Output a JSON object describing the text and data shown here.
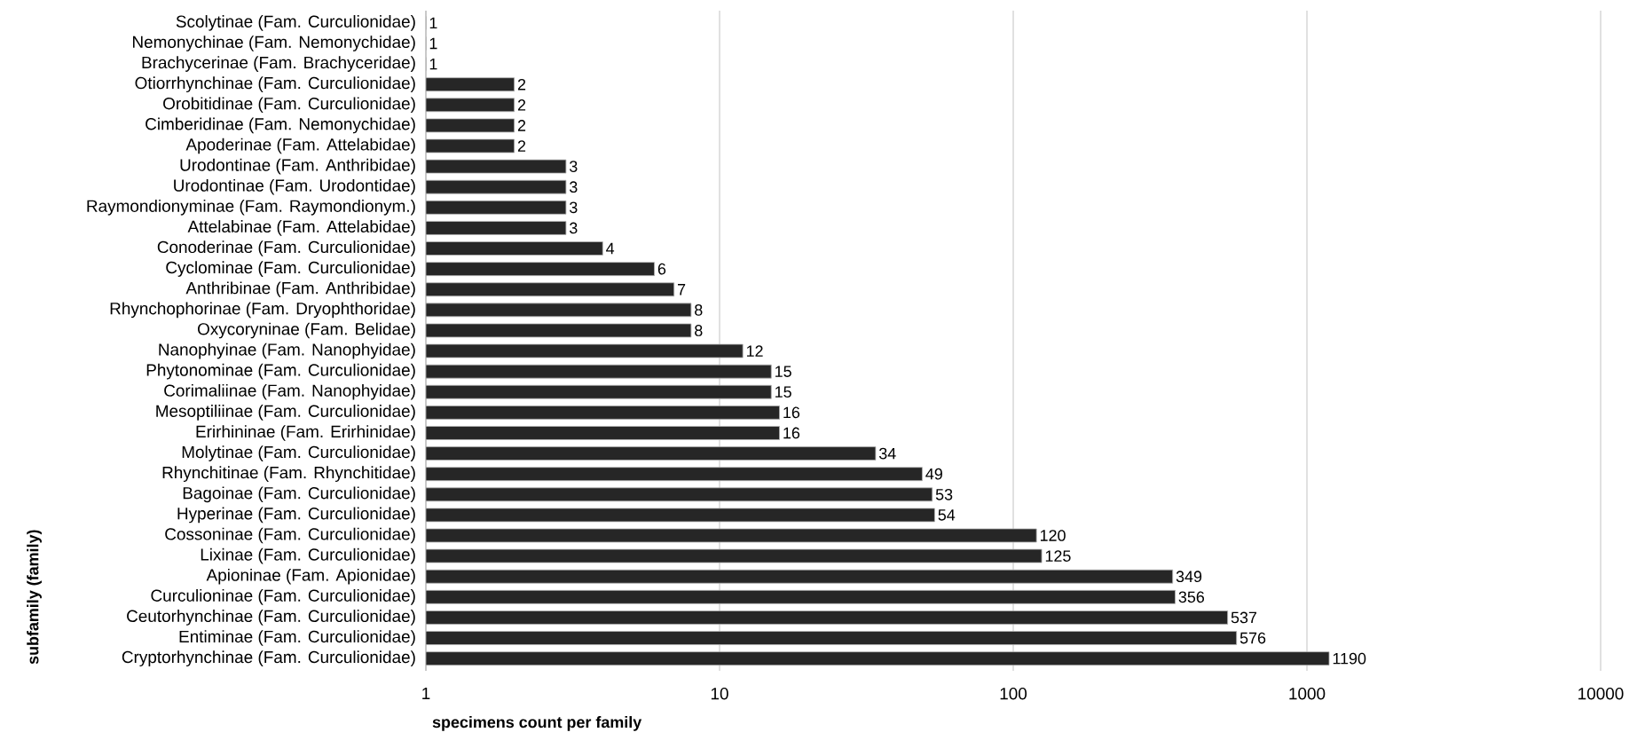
{
  "chart_data": {
    "type": "bar",
    "orientation": "horizontal",
    "xlabel": "specimens count per family",
    "ylabel": "subfamily (family)",
    "categories": [
      "Scolytinae (Fam. Curculionidae)",
      "Nemonychinae (Fam. Nemonychidae)",
      "Brachycerinae (Fam. Brachyceridae)",
      "Otiorrhynchinae (Fam. Curculionidae)",
      "Orobitidinae (Fam. Curculionidae)",
      "Cimberidinae (Fam. Nemonychidae)",
      "Apoderinae (Fam. Attelabidae)",
      "Urodontinae (Fam. Anthribidae)",
      "Urodontinae (Fam. Urodontidae)",
      "Raymondionyminae (Fam. Raymondionym.)",
      "Attelabinae (Fam. Attelabidae)",
      "Conoderinae (Fam. Curculionidae)",
      "Cyclominae (Fam. Curculionidae)",
      "Anthribinae (Fam. Anthribidae)",
      "Rhynchophorinae (Fam. Dryophthoridae)",
      "Oxycoryninae (Fam. Belidae)",
      "Nanophyinae (Fam. Nanophyidae)",
      "Phytonominae (Fam. Curculionidae)",
      "Corimaliinae (Fam. Nanophyidae)",
      "Mesoptiliinae (Fam. Curculionidae)",
      "Erirhininae (Fam. Erirhinidae)",
      "Molytinae (Fam. Curculionidae)",
      "Rhynchitinae (Fam. Rhynchitidae)",
      "Bagoinae (Fam. Curculionidae)",
      "Hyperinae (Fam. Curculionidae)",
      "Cossoninae (Fam. Curculionidae)",
      "Lixinae (Fam. Curculionidae)",
      "Apioninae (Fam. Apionidae)",
      "Curculioninae (Fam. Curculionidae)",
      "Ceutorhynchinae (Fam. Curculionidae)",
      "Entiminae (Fam. Curculionidae)",
      "Cryptorhynchinae (Fam. Curculionidae)"
    ],
    "values": [
      1,
      1,
      1,
      2,
      2,
      2,
      2,
      3,
      3,
      3,
      3,
      4,
      6,
      7,
      8,
      8,
      12,
      15,
      15,
      16,
      16,
      34,
      49,
      53,
      54,
      120,
      125,
      349,
      356,
      537,
      576,
      1190
    ],
    "color": "#262626",
    "log": "x",
    "xlim": [
      1,
      10000
    ],
    "xticks": [
      1,
      10,
      100,
      1000,
      10000
    ],
    "grid": "x",
    "data_labels": true
  }
}
